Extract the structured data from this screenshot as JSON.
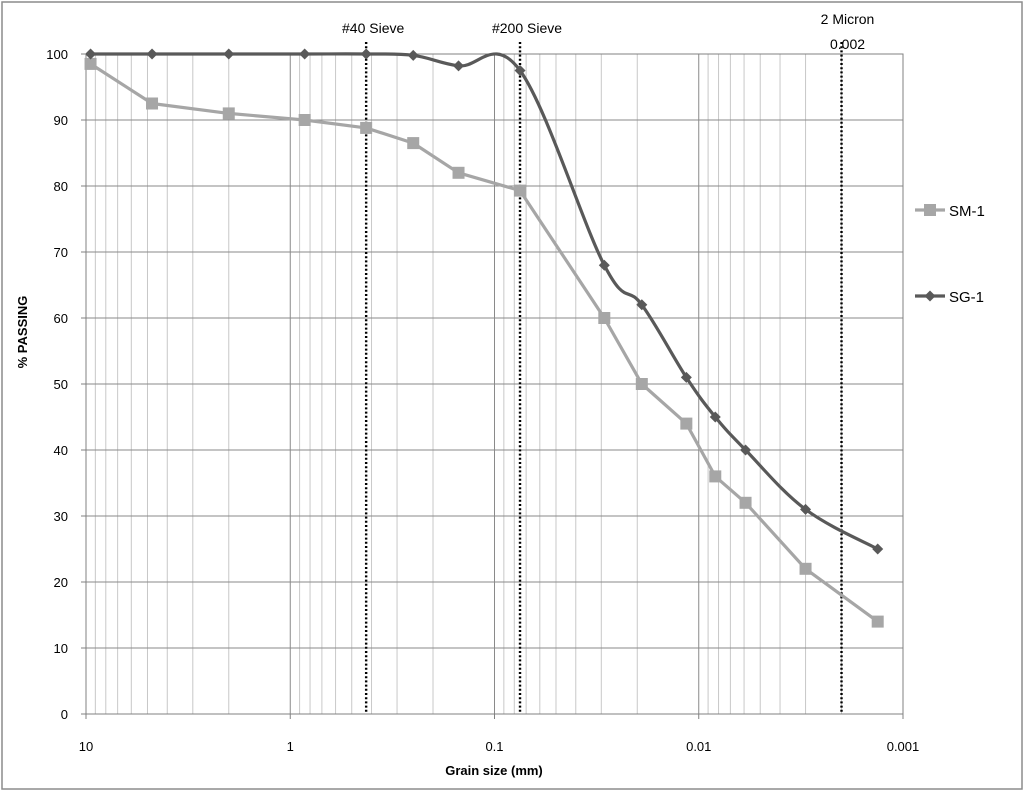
{
  "chart_data": {
    "type": "line",
    "title": "",
    "xlabel": "Grain size (mm)",
    "ylabel": "% PASSING",
    "x_scale": "log",
    "x_reversed": true,
    "xlim": [
      10,
      0.001
    ],
    "ylim": [
      0,
      100
    ],
    "x_ticks": [
      {
        "value": 10,
        "label": "10"
      },
      {
        "value": 1,
        "label": "1"
      },
      {
        "value": 0.1,
        "label": "0.1"
      },
      {
        "value": 0.01,
        "label": "0.01"
      },
      {
        "value": 0.001,
        "label": "0.001"
      }
    ],
    "y_ticks": [
      0,
      10,
      20,
      30,
      40,
      50,
      60,
      70,
      80,
      90,
      100
    ],
    "grid": true,
    "legend_position": "right",
    "reference_lines": [
      {
        "x": 0.425,
        "label": "#40 Sieve"
      },
      {
        "x": 0.075,
        "label": "#200 Sieve"
      },
      {
        "x": 0.002,
        "label": "2 Micron",
        "sublabel": "0.002"
      }
    ],
    "series": [
      {
        "name": "SM-1",
        "color": "#a6a6a6",
        "marker": "square",
        "smooth": false,
        "points": [
          {
            "x": 9.5,
            "y": 98.5
          },
          {
            "x": 4.75,
            "y": 92.5
          },
          {
            "x": 2.0,
            "y": 91
          },
          {
            "x": 0.85,
            "y": 90
          },
          {
            "x": 0.425,
            "y": 88.8
          },
          {
            "x": 0.25,
            "y": 86.5
          },
          {
            "x": 0.15,
            "y": 82
          },
          {
            "x": 0.075,
            "y": 79.3
          },
          {
            "x": 0.029,
            "y": 60
          },
          {
            "x": 0.019,
            "y": 50
          },
          {
            "x": 0.0115,
            "y": 44
          },
          {
            "x": 0.0083,
            "y": 36
          },
          {
            "x": 0.0059,
            "y": 32
          },
          {
            "x": 0.003,
            "y": 22
          },
          {
            "x": 0.00133,
            "y": 14
          }
        ]
      },
      {
        "name": "SG-1",
        "color": "#595959",
        "marker": "diamond",
        "smooth": true,
        "points": [
          {
            "x": 9.5,
            "y": 100
          },
          {
            "x": 4.75,
            "y": 100
          },
          {
            "x": 2.0,
            "y": 100
          },
          {
            "x": 0.85,
            "y": 100
          },
          {
            "x": 0.425,
            "y": 100
          },
          {
            "x": 0.25,
            "y": 99.8
          },
          {
            "x": 0.15,
            "y": 98.2
          },
          {
            "x": 0.075,
            "y": 97.5
          },
          {
            "x": 0.029,
            "y": 68
          },
          {
            "x": 0.019,
            "y": 62
          },
          {
            "x": 0.0115,
            "y": 51
          },
          {
            "x": 0.0083,
            "y": 45
          },
          {
            "x": 0.0059,
            "y": 40
          },
          {
            "x": 0.003,
            "y": 31
          },
          {
            "x": 0.00133,
            "y": 25
          }
        ]
      }
    ]
  }
}
